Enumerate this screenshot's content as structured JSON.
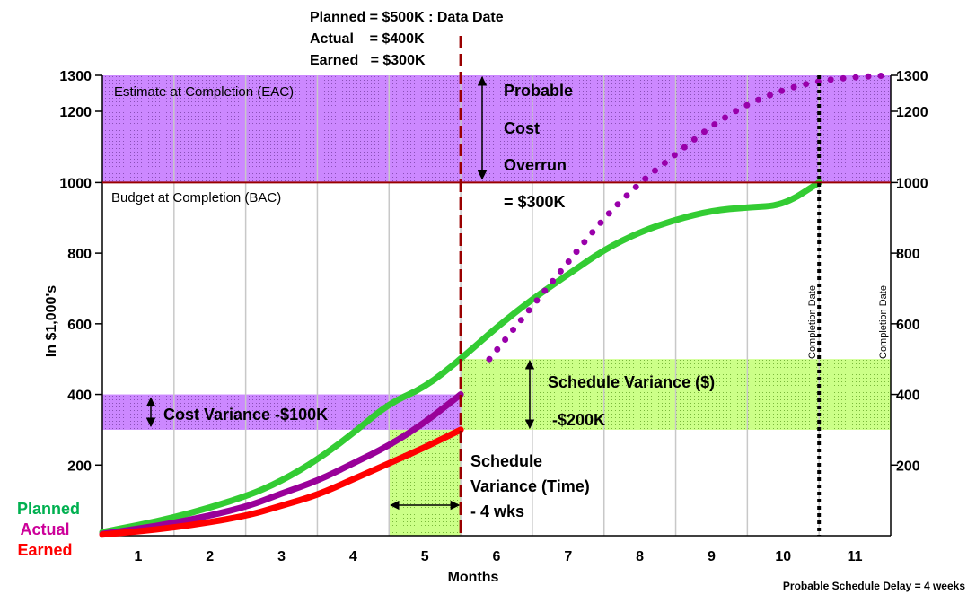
{
  "header": {
    "line1": "Planned = $500K : Data Date",
    "line2": "Actual    = $400K",
    "line3": "Earned   = $300K"
  },
  "regions": {
    "eac": "Estimate at Completion (EAC)",
    "bac": "Budget at Completion (BAC)",
    "overrun_1": "Probable",
    "overrun_2": "Cost",
    "overrun_3": "Overrun",
    "overrun_value": "= $300K",
    "cost_variance": "Cost Variance -$100K",
    "schedule_variance_dollar": "Schedule Variance ($)",
    "schedule_variance_dollar_value": "-$200K",
    "schedule_time_1": "Schedule",
    "schedule_time_2": "Variance (Time)",
    "schedule_time_3": "- 4 wks",
    "completion_date_1": "Completion Date",
    "completion_date_2": "Completion Date",
    "delay": "Probable Schedule Delay = 4 weeks"
  },
  "legend": {
    "planned": "Planned",
    "actual": "Actual",
    "earned": "Earned"
  },
  "colors": {
    "planned": "#33cc33",
    "actual": "#990099",
    "earned": "#ff0000",
    "eac_dotted": "#9900aa",
    "purple_band": "#cc88ff",
    "green_band": "#ccff88",
    "bac_line": "#990000",
    "data_date_line": "#990000",
    "legend_planned": "#00b050",
    "legend_actual": "#cc0099",
    "legend_earned": "#ff0000"
  },
  "chart_data": {
    "type": "line",
    "xlabel": "Months",
    "ylabel": "In $1,000's",
    "categories": [
      "1",
      "2",
      "3",
      "4",
      "5",
      "6",
      "7",
      "8",
      "9",
      "10",
      "11"
    ],
    "xlim": [
      0.5,
      11.5
    ],
    "ylim": [
      0,
      1300
    ],
    "y_ticks": [
      200,
      400,
      600,
      800,
      1000,
      1200,
      1300
    ],
    "grid": "vertical",
    "data_date_month": 5.5,
    "completion_month": 10.5,
    "bac": 1000,
    "eac": 1300,
    "series": [
      {
        "name": "Planned",
        "x": [
          0.5,
          1.5,
          2.5,
          3,
          3.5,
          4,
          4.5,
          5,
          5.5,
          6,
          6.5,
          7,
          7.5,
          8,
          8.5,
          9,
          9.5,
          10,
          10.5
        ],
        "y": [
          10,
          50,
          110,
          155,
          215,
          290,
          375,
          420,
          500,
          590,
          670,
          740,
          810,
          860,
          895,
          920,
          930,
          935,
          1000
        ]
      },
      {
        "name": "Actual",
        "x": [
          0.5,
          1.5,
          2.5,
          3,
          3.5,
          4,
          4.5,
          5,
          5.5
        ],
        "y": [
          5,
          35,
          80,
          120,
          155,
          205,
          255,
          320,
          400
        ]
      },
      {
        "name": "Earned",
        "x": [
          0.5,
          1.5,
          2.5,
          3,
          3.5,
          4,
          4.5,
          5,
          5.5
        ],
        "y": [
          3,
          22,
          55,
          85,
          115,
          160,
          205,
          250,
          300
        ]
      },
      {
        "name": "EAC forecast",
        "x": [
          5.9,
          6.5,
          7,
          7.5,
          8,
          8.5,
          9,
          9.5,
          10,
          10.5,
          11,
          11.5
        ],
        "y": [
          500,
          650,
          775,
          900,
          1000,
          1080,
          1160,
          1220,
          1260,
          1285,
          1295,
          1300
        ]
      }
    ]
  }
}
